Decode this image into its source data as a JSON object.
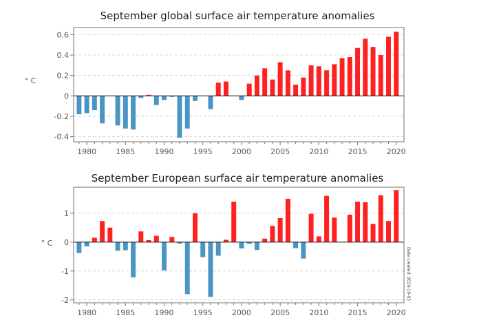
{
  "colors": {
    "positive": "#ff2020",
    "negative": "#4a94c6"
  },
  "note": "Date created: 2020-10-03",
  "chart_data": [
    {
      "type": "bar",
      "title": "September global surface air temperature anomalies",
      "xlabel": "",
      "ylabel": "° C",
      "ylim": [
        -0.45,
        0.67
      ],
      "yticks": [
        -0.4,
        -0.2,
        0,
        0.2,
        0.4,
        0.6
      ],
      "ytick_labels": [
        "-0.4",
        "-0.2",
        "0",
        "0.2",
        "0.4",
        "0.6"
      ],
      "xticks": [
        1980,
        1985,
        1990,
        1995,
        2000,
        2005,
        2010,
        2015,
        2020
      ],
      "xtick_labels": [
        "1980",
        "1985",
        "1990",
        "1995",
        "2000",
        "2005",
        "2010",
        "2015",
        "2020"
      ],
      "grid": true,
      "x": [
        1979,
        1980,
        1981,
        1982,
        1983,
        1984,
        1985,
        1986,
        1987,
        1988,
        1989,
        1990,
        1991,
        1992,
        1993,
        1994,
        1995,
        1996,
        1997,
        1998,
        1999,
        2000,
        2001,
        2002,
        2003,
        2004,
        2005,
        2006,
        2007,
        2008,
        2009,
        2010,
        2011,
        2012,
        2013,
        2014,
        2015,
        2016,
        2017,
        2018,
        2019,
        2020
      ],
      "values": [
        -0.18,
        -0.17,
        -0.14,
        -0.27,
        0,
        -0.29,
        -0.32,
        -0.33,
        -0.02,
        0.01,
        -0.09,
        -0.04,
        -0.01,
        -0.41,
        -0.32,
        -0.05,
        0,
        -0.13,
        0.13,
        0.14,
        0,
        -0.04,
        0.12,
        0.2,
        0.27,
        0.16,
        0.33,
        0.25,
        0.11,
        0.18,
        0.3,
        0.29,
        0.25,
        0.31,
        0.37,
        0.38,
        0.47,
        0.56,
        0.48,
        0.4,
        0.58,
        0.63
      ]
    },
    {
      "type": "bar",
      "title": "September European surface air temperature anomalies",
      "xlabel": "",
      "ylabel": "° C",
      "ylim": [
        -2.1,
        1.9
      ],
      "yticks": [
        -2,
        -1,
        0,
        1
      ],
      "ytick_labels": [
        "-2",
        "-1",
        "0",
        "1"
      ],
      "xticks": [
        1980,
        1985,
        1990,
        1995,
        2000,
        2005,
        2010,
        2015,
        2020
      ],
      "xtick_labels": [
        "1980",
        "1985",
        "1990",
        "1995",
        "2000",
        "2005",
        "2010",
        "2015",
        "2020"
      ],
      "grid": true,
      "x": [
        1979,
        1980,
        1981,
        1982,
        1983,
        1984,
        1985,
        1986,
        1987,
        1988,
        1989,
        1990,
        1991,
        1992,
        1993,
        1994,
        1995,
        1996,
        1997,
        1998,
        1999,
        2000,
        2001,
        2002,
        2003,
        2004,
        2005,
        2006,
        2007,
        2008,
        2009,
        2010,
        2011,
        2012,
        2013,
        2014,
        2015,
        2016,
        2017,
        2018,
        2019,
        2020
      ],
      "values": [
        -0.38,
        -0.15,
        0.15,
        0.73,
        0.5,
        -0.3,
        -0.28,
        -1.22,
        0.37,
        0.07,
        0.22,
        -0.98,
        0.18,
        -0.05,
        -1.8,
        1.0,
        -0.52,
        -1.9,
        -0.47,
        0.08,
        1.4,
        -0.22,
        -0.06,
        -0.27,
        0.12,
        0.56,
        0.83,
        1.5,
        -0.21,
        -0.57,
        0.98,
        0.2,
        1.6,
        0.85,
        0,
        0.95,
        1.4,
        1.38,
        0.63,
        1.62,
        0.73,
        1.8
      ]
    }
  ]
}
